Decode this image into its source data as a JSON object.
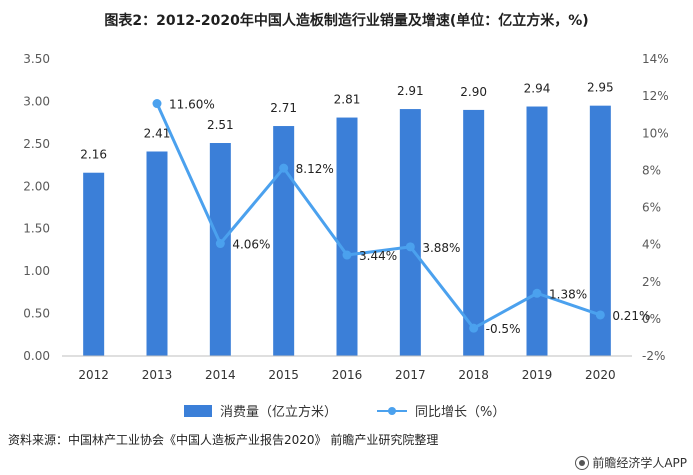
{
  "title": "图表2：2012-2020年中国人造板制造行业销量及增速(单位：亿立方米，%)",
  "source": "资料来源：中国林产工业协会《中国人造板产业报告2020》 前瞻产业研究院整理",
  "watermark": "前瞻经济学人APP",
  "colors": {
    "bar": "#3b7fd8",
    "line": "#4ba1ee",
    "axis": "#595959",
    "grid": "#d9d9d9"
  },
  "chart_data": {
    "type": "bar+line",
    "categories": [
      "2012",
      "2013",
      "2014",
      "2015",
      "2016",
      "2017",
      "2018",
      "2019",
      "2020"
    ],
    "series": [
      {
        "name": "消费量（亿立方米）",
        "type": "bar",
        "axis": "left",
        "values": [
          2.16,
          2.41,
          2.51,
          2.71,
          2.81,
          2.91,
          2.9,
          2.94,
          2.95
        ],
        "labels": [
          "2.16",
          "2.41",
          "2.51",
          "2.71",
          "2.81",
          "2.91",
          "2.90",
          "2.94",
          "2.95"
        ]
      },
      {
        "name": "同比增长（%）",
        "type": "line",
        "axis": "right",
        "x": [
          "2013",
          "2014",
          "2015",
          "2016",
          "2017",
          "2018",
          "2019",
          "2020"
        ],
        "values": [
          11.6,
          4.06,
          8.12,
          3.44,
          3.88,
          -0.5,
          1.38,
          0.21
        ],
        "labels": [
          "11.60%",
          "4.06%",
          "8.12%",
          "3.44%",
          "3.88%",
          "-0.5%",
          "1.38%",
          "0.21%"
        ]
      }
    ],
    "y_left": {
      "min": 0,
      "max": 3.5,
      "ticks": [
        "0.00",
        "0.50",
        "1.00",
        "1.50",
        "2.00",
        "2.50",
        "3.00",
        "3.50"
      ]
    },
    "y_right": {
      "min": -2,
      "max": 14,
      "ticks": [
        "-2%",
        "0%",
        "2%",
        "4%",
        "6%",
        "8%",
        "10%",
        "12%",
        "14%"
      ]
    },
    "grid": false,
    "legend_position": "bottom"
  }
}
